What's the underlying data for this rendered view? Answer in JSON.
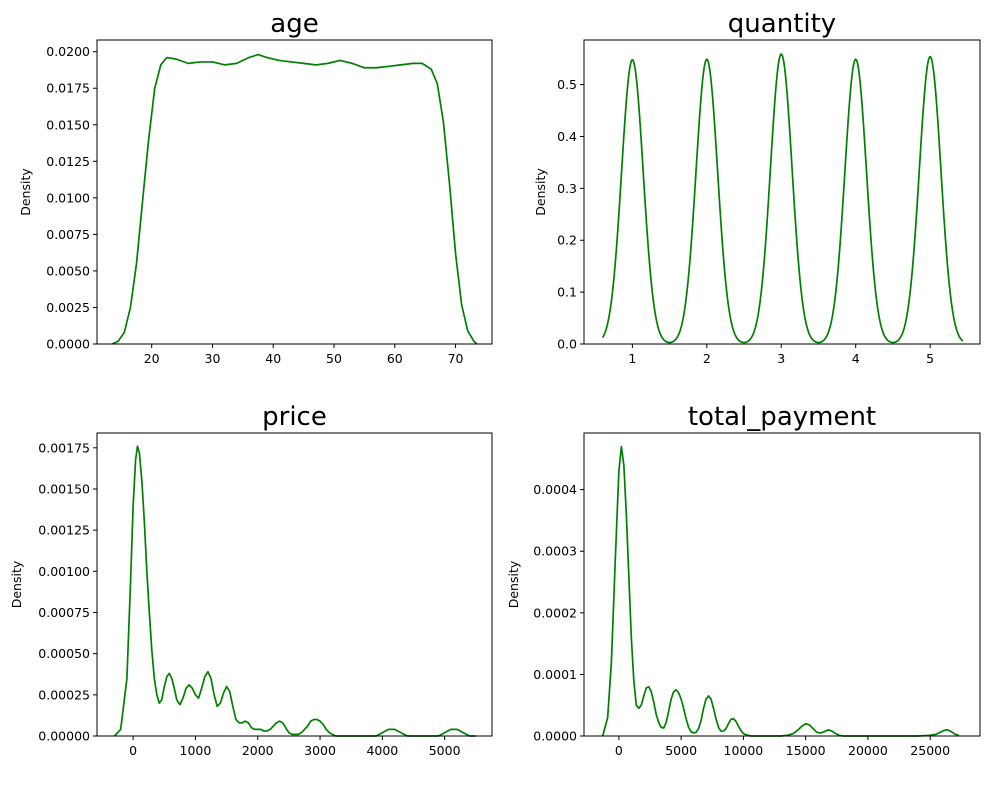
{
  "line_color": "#008000",
  "chart_data": [
    {
      "type": "line",
      "title": "age",
      "xlabel": "",
      "ylabel": "Density",
      "xlim": [
        11,
        76
      ],
      "ylim": [
        0,
        0.0208
      ],
      "xticks": [
        20,
        30,
        40,
        50,
        60,
        70
      ],
      "xtick_labels": [
        "20",
        "30",
        "40",
        "50",
        "60",
        "70"
      ],
      "yticks": [
        0,
        0.0025,
        0.005,
        0.0075,
        0.01,
        0.0125,
        0.015,
        0.0175,
        0.02
      ],
      "ytick_labels": [
        "0.0000",
        "0.0025",
        "0.0050",
        "0.0075",
        "0.0100",
        "0.0125",
        "0.0150",
        "0.0175",
        "0.0200"
      ],
      "x": [
        13.5,
        14.5,
        15.5,
        16.5,
        17.5,
        18.5,
        19.5,
        20.5,
        21.5,
        22.5,
        24,
        26,
        28,
        30,
        32,
        34,
        36,
        37.5,
        39,
        41,
        43,
        45,
        47,
        49,
        51,
        53,
        55,
        57,
        59,
        61,
        63,
        64.5,
        66,
        67,
        68,
        69,
        70,
        71,
        72,
        73,
        73.5
      ],
      "y": [
        0.0,
        0.0002,
        0.0008,
        0.0025,
        0.0055,
        0.0098,
        0.014,
        0.0175,
        0.0191,
        0.0196,
        0.0195,
        0.0192,
        0.0193,
        0.0193,
        0.0191,
        0.0192,
        0.0196,
        0.0198,
        0.0196,
        0.0194,
        0.0193,
        0.0192,
        0.0191,
        0.0192,
        0.0194,
        0.0192,
        0.0189,
        0.0189,
        0.019,
        0.0191,
        0.0192,
        0.0192,
        0.0188,
        0.0178,
        0.0152,
        0.011,
        0.0062,
        0.0027,
        0.0009,
        0.0002,
        0.0
      ]
    },
    {
      "type": "line",
      "title": "quantity",
      "xlabel": "",
      "ylabel": "Density",
      "xlim": [
        0.35,
        5.67
      ],
      "ylim": [
        0,
        0.586
      ],
      "xticks": [
        1,
        2,
        3,
        4,
        5
      ],
      "xtick_labels": [
        "1",
        "2",
        "3",
        "4",
        "5"
      ],
      "yticks": [
        0,
        0.1,
        0.2,
        0.3,
        0.4,
        0.5
      ],
      "ytick_labels": [
        "0.0",
        "0.1",
        "0.2",
        "0.3",
        "0.4",
        "0.5"
      ],
      "x_range": [
        0.6,
        5.44
      ],
      "peaks": [
        {
          "center": 1,
          "height": 0.548,
          "sigma": 0.145
        },
        {
          "center": 2,
          "height": 0.549,
          "sigma": 0.145
        },
        {
          "center": 3,
          "height": 0.559,
          "sigma": 0.145
        },
        {
          "center": 4,
          "height": 0.549,
          "sigma": 0.145
        },
        {
          "center": 5,
          "height": 0.554,
          "sigma": 0.145
        }
      ]
    },
    {
      "type": "line",
      "title": "price",
      "xlabel": "",
      "ylabel": "Density",
      "xlim": [
        -580,
        5760
      ],
      "ylim": [
        0,
        0.00184
      ],
      "xticks": [
        0,
        1000,
        2000,
        3000,
        4000,
        5000
      ],
      "xtick_labels": [
        "0",
        "1000",
        "2000",
        "3000",
        "4000",
        "5000"
      ],
      "yticks": [
        0,
        0.00025,
        0.0005,
        0.00075,
        0.001,
        0.00125,
        0.0015,
        0.00175
      ],
      "ytick_labels": [
        "0.00000",
        "0.00025",
        "0.00050",
        "0.00075",
        "0.00100",
        "0.00125",
        "0.00150",
        "0.00175"
      ],
      "x": [
        -300,
        -200,
        -100,
        -40,
        0,
        40,
        70,
        100,
        140,
        180,
        220,
        260,
        300,
        340,
        380,
        420,
        460,
        500,
        540,
        580,
        620,
        660,
        700,
        750,
        800,
        850,
        900,
        950,
        1000,
        1050,
        1100,
        1150,
        1200,
        1250,
        1300,
        1350,
        1400,
        1450,
        1500,
        1550,
        1600,
        1650,
        1700,
        1750,
        1800,
        1850,
        1900,
        1950,
        2000,
        2050,
        2100,
        2150,
        2200,
        2250,
        2300,
        2350,
        2400,
        2450,
        2500,
        2550,
        2600,
        2650,
        2700,
        2750,
        2800,
        2850,
        2900,
        2950,
        3000,
        3050,
        3100,
        3150,
        3200,
        3250,
        3300,
        3400,
        3500,
        3600,
        3700,
        3800,
        3900,
        3950,
        4000,
        4050,
        4100,
        4150,
        4200,
        4250,
        4300,
        4350,
        4400,
        4450,
        4500,
        4600,
        4700,
        4800,
        4900,
        4950,
        5000,
        5050,
        5100,
        5150,
        5200,
        5250,
        5300,
        5350,
        5400,
        5450,
        5500
      ],
      "y": [
        0.0,
        4e-05,
        0.00035,
        0.00095,
        0.0014,
        0.00168,
        0.00176,
        0.00172,
        0.00155,
        0.0013,
        0.001,
        0.00075,
        0.00052,
        0.00035,
        0.00025,
        0.0002,
        0.00022,
        0.0003,
        0.00036,
        0.00038,
        0.00035,
        0.00029,
        0.00022,
        0.00019,
        0.00023,
        0.00029,
        0.00031,
        0.00029,
        0.00025,
        0.00023,
        0.00029,
        0.00036,
        0.00039,
        0.00035,
        0.00025,
        0.00018,
        0.0002,
        0.00026,
        0.0003,
        0.00027,
        0.00018,
        0.0001,
        8e-05,
        8e-05,
        9e-05,
        8e-05,
        5e-05,
        4e-05,
        4e-05,
        4e-05,
        3e-05,
        3e-05,
        4e-05,
        6e-05,
        8e-05,
        9e-05,
        8e-05,
        5e-05,
        2e-05,
        1e-05,
        1e-05,
        1e-05,
        2e-05,
        4e-05,
        6e-05,
        9e-05,
        0.0001,
        0.0001,
        9e-05,
        7e-05,
        4e-05,
        2e-05,
        1e-05,
        0.0,
        0.0,
        0.0,
        0.0,
        0.0,
        0.0,
        0.0,
        0.0,
        1e-05,
        2e-05,
        3e-05,
        4e-05,
        4e-05,
        4e-05,
        3e-05,
        2e-05,
        1e-05,
        0.0,
        0.0,
        0.0,
        0.0,
        0.0,
        0.0,
        0.0,
        1e-05,
        2e-05,
        3e-05,
        4e-05,
        4e-05,
        4e-05,
        3e-05,
        2e-05,
        1e-05,
        0.0,
        0.0,
        0.0
      ]
    },
    {
      "type": "line",
      "title": "total_payment",
      "xlabel": "",
      "ylabel": "Density",
      "xlim": [
        -2800,
        29000
      ],
      "ylim": [
        0,
        0.000492
      ],
      "xticks": [
        0,
        5000,
        10000,
        15000,
        20000,
        25000
      ],
      "xtick_labels": [
        "0",
        "5000",
        "10000",
        "15000",
        "20000",
        "25000"
      ],
      "yticks": [
        0,
        0.0001,
        0.0002,
        0.0003,
        0.0004
      ],
      "ytick_labels": [
        "0.0000",
        "0.0001",
        "0.0002",
        "0.0003",
        "0.0004"
      ],
      "x": [
        -1300,
        -900,
        -600,
        -300,
        0,
        200,
        400,
        600,
        800,
        1000,
        1200,
        1400,
        1600,
        1800,
        2000,
        2200,
        2400,
        2600,
        2800,
        3000,
        3200,
        3400,
        3600,
        3800,
        4000,
        4200,
        4400,
        4600,
        4800,
        5000,
        5200,
        5400,
        5600,
        5800,
        6000,
        6200,
        6400,
        6600,
        6800,
        7000,
        7200,
        7400,
        7600,
        7800,
        8000,
        8200,
        8400,
        8600,
        8800,
        9000,
        9200,
        9400,
        9600,
        9800,
        10000,
        10200,
        10400,
        10600,
        10800,
        11000,
        11500,
        12000,
        12500,
        13000,
        13500,
        14000,
        14400,
        14700,
        15000,
        15300,
        15600,
        15900,
        16200,
        16500,
        16800,
        17100,
        17400,
        17700,
        18000,
        18500,
        19000,
        20000,
        21000,
        22000,
        23000,
        24000,
        25000,
        25500,
        25800,
        26100,
        26400,
        26700,
        27000,
        27300
      ],
      "y": [
        0.0,
        3e-05,
        0.00012,
        0.00028,
        0.00043,
        0.00047,
        0.00044,
        0.00036,
        0.00026,
        0.00016,
        9e-05,
        5e-05,
        4.5e-05,
        5e-05,
        6.5e-05,
        7.8e-05,
        8e-05,
        7.2e-05,
        5.5e-05,
        3.5e-05,
        2.2e-05,
        1.4e-05,
        1.3e-05,
        2.2e-05,
        4e-05,
        6e-05,
        7.2e-05,
        7.5e-05,
        7e-05,
        6e-05,
        4.5e-05,
        2.8e-05,
        1.4e-05,
        7e-06,
        5e-06,
        6e-06,
        1.2e-05,
        2.5e-05,
        4.5e-05,
        6e-05,
        6.5e-05,
        6e-05,
        4.5e-05,
        2.8e-05,
        1.4e-05,
        8e-06,
        8e-06,
        1.2e-05,
        2e-05,
        2.7e-05,
        2.8e-05,
        2.4e-05,
        1.6e-05,
        9e-06,
        4e-06,
        2e-06,
        1e-06,
        0.0,
        0.0,
        0.0,
        0.0,
        0.0,
        0.0,
        0.0,
        1e-06,
        4e-06,
        1e-05,
        1.6e-05,
        2e-05,
        1.8e-05,
        1.2e-05,
        6e-06,
        5e-06,
        7e-06,
        1e-05,
        8e-06,
        4e-06,
        1e-06,
        0.0,
        0.0,
        0.0,
        0.0,
        0.0,
        0.0,
        0.0,
        0.0,
        1e-06,
        3e-06,
        6e-06,
        9e-06,
        1e-05,
        7e-06,
        3e-06,
        1e-06
      ]
    }
  ]
}
